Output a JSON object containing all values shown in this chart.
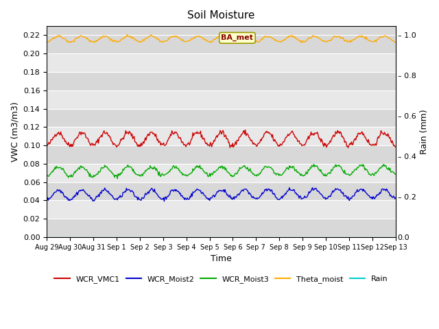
{
  "title": "Soil Moisture",
  "xlabel": "Time",
  "ylabel_left": "VWC (m3/m3)",
  "ylabel_right": "Rain (mm)",
  "ylim_left": [
    0.0,
    0.23
  ],
  "ylim_right": [
    0.0,
    1.045
  ],
  "bg_color": "#ffffff",
  "plot_bg_color": "#d8d8d8",
  "band_colors": [
    "#d8d8d8",
    "#e8e8e8"
  ],
  "n_points": 500,
  "duration_days": 15,
  "series": {
    "WCR_VMC1": {
      "color": "#cc0000",
      "base": 0.107,
      "amplitude": 0.007,
      "period_days": 1.0,
      "trend": 0.0
    },
    "WCR_Moist2": {
      "color": "#0000cc",
      "base": 0.046,
      "amplitude": 0.005,
      "period_days": 1.0,
      "trend": 8e-05
    },
    "WCR_Moist3": {
      "color": "#00aa00",
      "base": 0.071,
      "amplitude": 0.005,
      "period_days": 1.0,
      "trend": 0.00012
    },
    "Theta_moist": {
      "color": "#ffaa00",
      "base": 0.216,
      "amplitude": 0.003,
      "period_days": 1.0,
      "trend": 0.0
    },
    "Rain": {
      "color": "#00cccc",
      "base": 0.0,
      "amplitude": 0.0,
      "period_days": 1.0,
      "trend": 0.0
    }
  },
  "xtick_labels": [
    "Aug 29",
    "Aug 30",
    "Aug 31",
    "Sep 1",
    "Sep 2",
    "Sep 3",
    "Sep 4",
    "Sep 5",
    "Sep 6",
    "Sep 7",
    "Sep 8",
    "Sep 9",
    "Sep 10",
    "Sep 11",
    "Sep 12",
    "Sep 13"
  ],
  "xtick_positions": [
    0,
    1,
    2,
    3,
    4,
    5,
    6,
    7,
    8,
    9,
    10,
    11,
    12,
    13,
    14,
    15
  ],
  "annotation_text": "BA_met",
  "grid_color": "#ffffff",
  "yticks_left": [
    0.0,
    0.02,
    0.04,
    0.06,
    0.08,
    0.1,
    0.12,
    0.14,
    0.16,
    0.18,
    0.2,
    0.22
  ],
  "yticks_right_vals": [
    0.0,
    0.2,
    0.4,
    0.6,
    0.8,
    1.0
  ],
  "yticks_right_labels": [
    "0.0",
    "0.2",
    "0.4",
    "0.6",
    "0.8",
    "1.0"
  ],
  "legend_labels": [
    "WCR_VMC1",
    "WCR_Moist2",
    "WCR_Moist3",
    "Theta_moist",
    "Rain"
  ],
  "legend_colors": [
    "#cc0000",
    "#0000cc",
    "#00aa00",
    "#ffaa00",
    "#00cccc"
  ]
}
